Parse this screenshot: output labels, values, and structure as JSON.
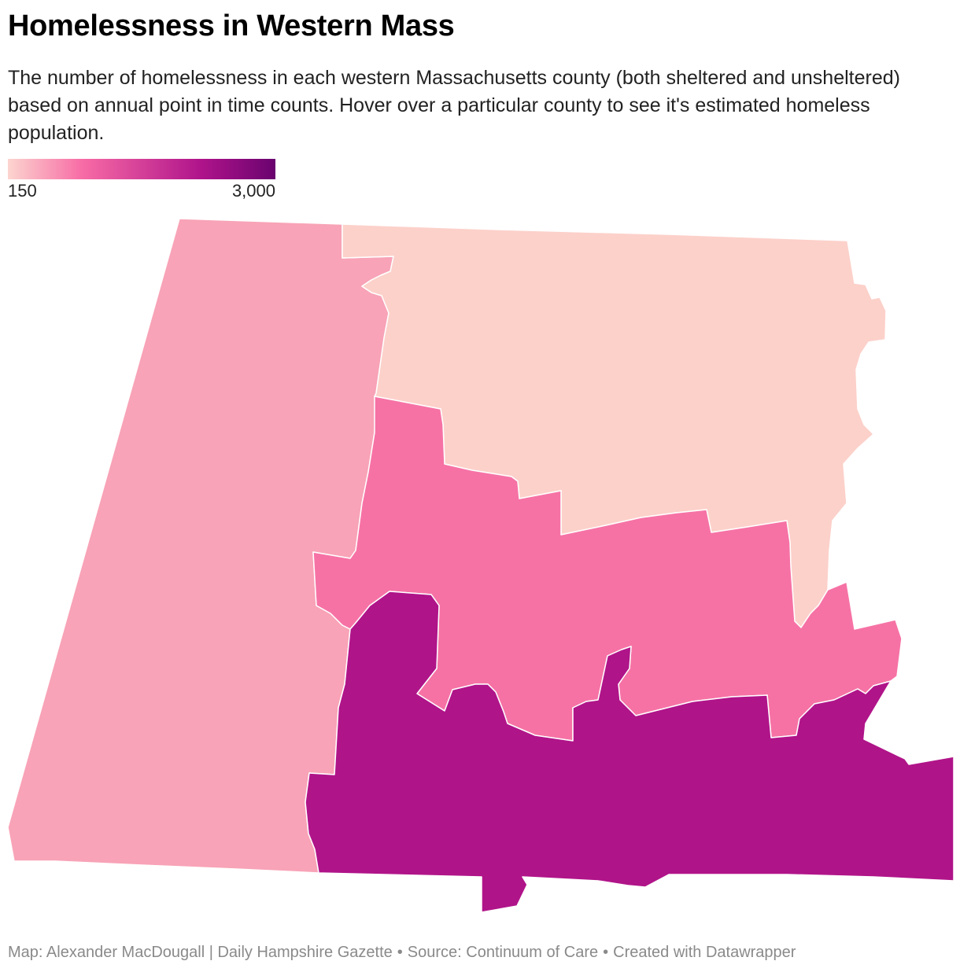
{
  "header": {
    "title": "Homelessness in Western Mass",
    "description": "The number of homelessness in each western Massachusetts county (both sheltered and unsheltered) based on annual point in time counts. Hover over a particular county to see it's estimated homeless population."
  },
  "legend": {
    "min_label": "150",
    "max_label": "3,000",
    "colors": [
      "#fcd5cf",
      "#f76ba5",
      "#b0148b",
      "#6a036f"
    ]
  },
  "map": {
    "counties": [
      {
        "id": "berkshire",
        "fill": "#f8a3b7"
      },
      {
        "id": "franklin",
        "fill": "#fcd1ca"
      },
      {
        "id": "hampshire",
        "fill": "#f672a5"
      },
      {
        "id": "hampden",
        "fill": "#b01489"
      }
    ]
  },
  "footer": {
    "map_credit": "Map: Alexander MacDougall | Daily Hampshire Gazette",
    "separator": "•",
    "source": "Source: Continuum of Care",
    "tool": "Created with Datawrapper"
  }
}
